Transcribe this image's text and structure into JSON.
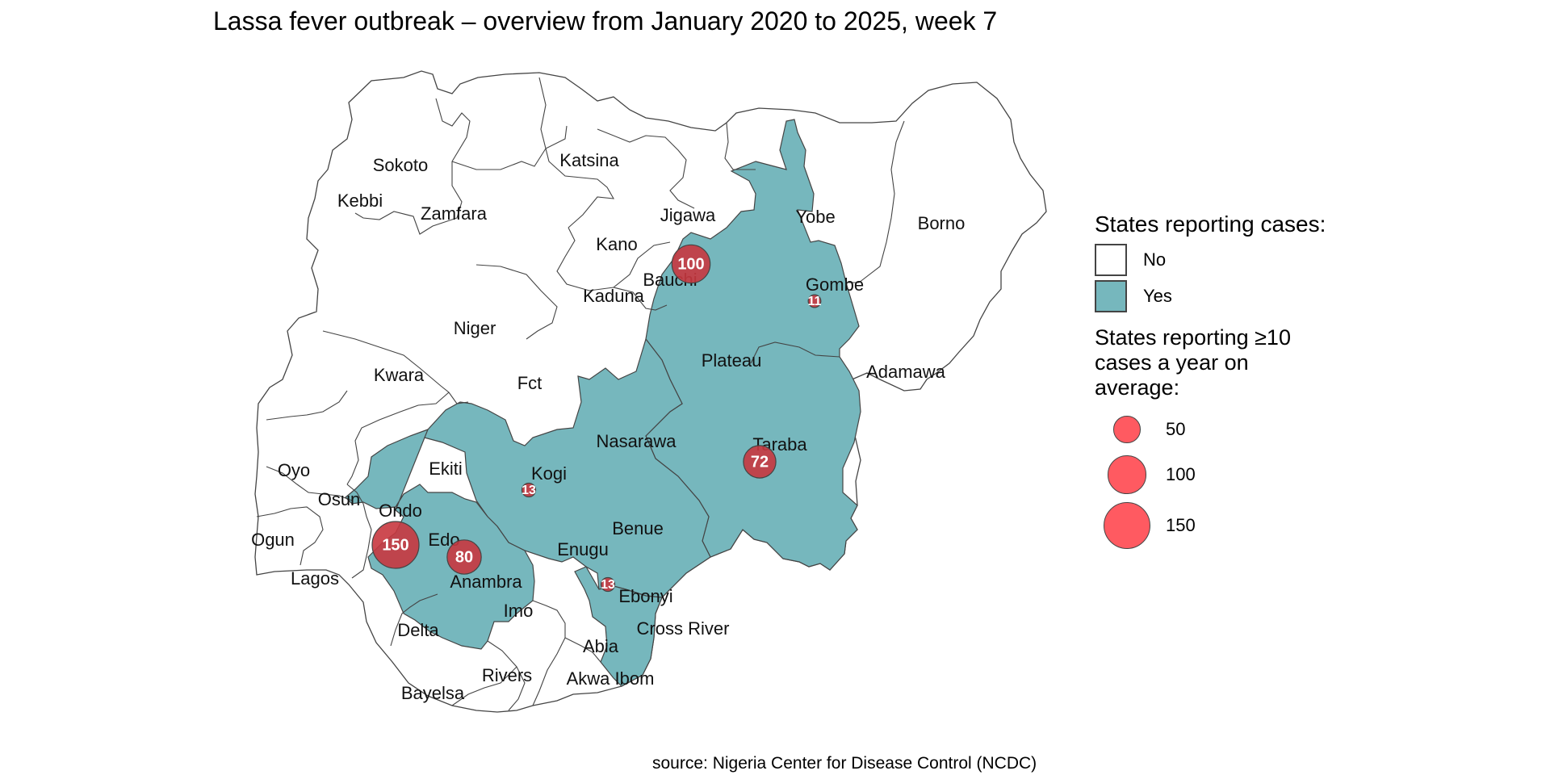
{
  "title": "Lassa fever outbreak – overview from January 2020 to 2025, week 7",
  "source": "source: Nigeria Center for Disease Control (NCDC)",
  "colors": {
    "reporting_fill": "#76b7bd",
    "no_report_fill": "#ffffff",
    "border": "#444444",
    "bubble_fill": "#c8373f",
    "legend_bubble_fill": "#ff5a61"
  },
  "legend": {
    "fill_title": "States reporting cases:",
    "fill_items": [
      {
        "label": "No",
        "color": "#ffffff"
      },
      {
        "label": "Yes",
        "color": "#76b7bd"
      }
    ],
    "size_title": "States reporting ≥10 cases a year on average:",
    "size_items": [
      {
        "label": "50",
        "value": 50
      },
      {
        "label": "100",
        "value": 100
      },
      {
        "label": "150",
        "value": 150
      }
    ]
  },
  "states": [
    {
      "name": "Sokoto",
      "reporting": false
    },
    {
      "name": "Kebbi",
      "reporting": false
    },
    {
      "name": "Zamfara",
      "reporting": false
    },
    {
      "name": "Katsina",
      "reporting": false
    },
    {
      "name": "Jigawa",
      "reporting": false
    },
    {
      "name": "Kano",
      "reporting": false
    },
    {
      "name": "Yobe",
      "reporting": true
    },
    {
      "name": "Borno",
      "reporting": false
    },
    {
      "name": "Kaduna",
      "reporting": false
    },
    {
      "name": "Bauchi",
      "reporting": true
    },
    {
      "name": "Gombe",
      "reporting": true
    },
    {
      "name": "Niger",
      "reporting": false
    },
    {
      "name": "Plateau",
      "reporting": true
    },
    {
      "name": "Adamawa",
      "reporting": false
    },
    {
      "name": "Kwara",
      "reporting": false
    },
    {
      "name": "Fct",
      "reporting": false
    },
    {
      "name": "Nasarawa",
      "reporting": true
    },
    {
      "name": "Taraba",
      "reporting": true
    },
    {
      "name": "Oyo",
      "reporting": false
    },
    {
      "name": "Ekiti",
      "reporting": false
    },
    {
      "name": "Kogi",
      "reporting": true
    },
    {
      "name": "Osun",
      "reporting": false
    },
    {
      "name": "Ondo",
      "reporting": true
    },
    {
      "name": "Ogun",
      "reporting": false
    },
    {
      "name": "Edo",
      "reporting": true
    },
    {
      "name": "Benue",
      "reporting": true
    },
    {
      "name": "Enugu",
      "reporting": false
    },
    {
      "name": "Lagos",
      "reporting": false
    },
    {
      "name": "Anambra",
      "reporting": true
    },
    {
      "name": "Ebonyi",
      "reporting": true
    },
    {
      "name": "Imo",
      "reporting": false
    },
    {
      "name": "Delta",
      "reporting": true
    },
    {
      "name": "Cross River",
      "reporting": true
    },
    {
      "name": "Abia",
      "reporting": false
    },
    {
      "name": "Rivers",
      "reporting": false
    },
    {
      "name": "Akwa Ibom",
      "reporting": false
    },
    {
      "name": "Bayelsa",
      "reporting": false
    }
  ],
  "bubbles": [
    {
      "state": "Ondo",
      "value": 150,
      "label": "150"
    },
    {
      "state": "Bauchi",
      "value": 100,
      "label": "100"
    },
    {
      "state": "Edo",
      "value": 80,
      "label": "80"
    },
    {
      "state": "Taraba",
      "value": 72,
      "label": "72"
    },
    {
      "state": "Kogi",
      "value": 13,
      "label": "13"
    },
    {
      "state": "Ebonyi",
      "value": 13,
      "label": "13"
    },
    {
      "state": "Gombe",
      "value": 11,
      "label": "11"
    }
  ]
}
